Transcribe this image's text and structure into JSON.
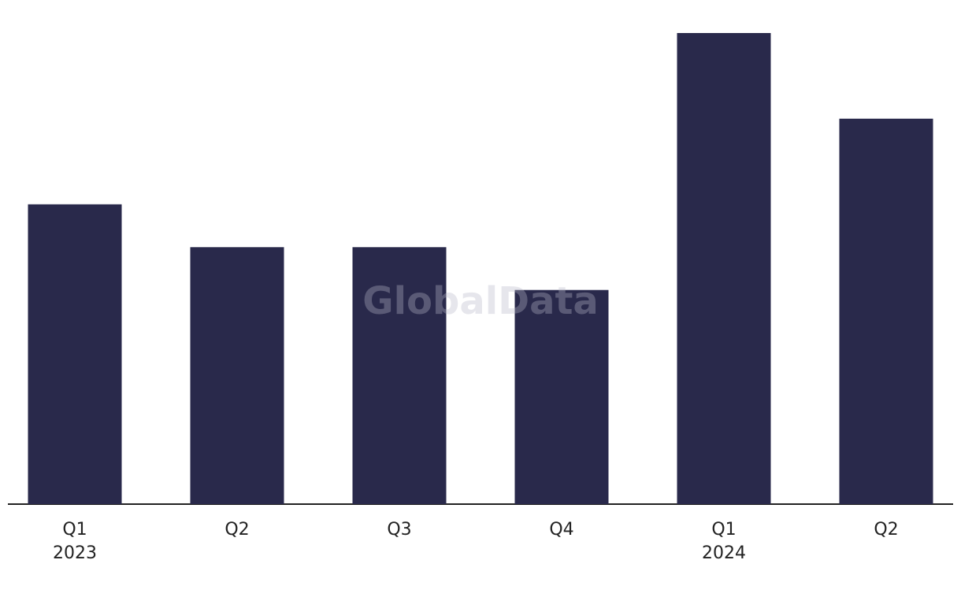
{
  "chart_data": {
    "type": "bar",
    "watermark": "GlobalData",
    "categories": [
      "Q1",
      "Q2",
      "Q3",
      "Q4",
      "Q1",
      "Q2"
    ],
    "category_sublabels": [
      "2023",
      null,
      null,
      null,
      "2024",
      null
    ],
    "values": [
      7,
      6,
      6,
      5,
      11,
      9
    ],
    "color": "#29294b",
    "ylim": [
      0,
      11
    ]
  }
}
